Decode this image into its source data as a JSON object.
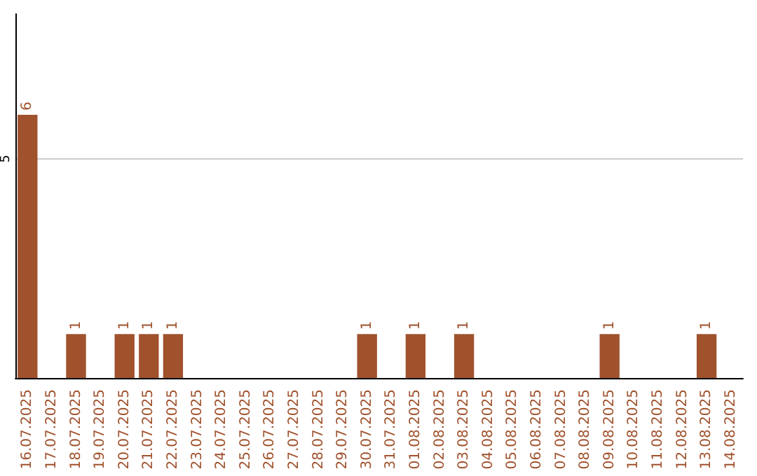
{
  "chart_data": {
    "type": "bar",
    "categories": [
      "16.07.2025",
      "17.07.2025",
      "18.07.2025",
      "19.07.2025",
      "20.07.2025",
      "21.07.2025",
      "22.07.2025",
      "23.07.2025",
      "24.07.2025",
      "25.07.2025",
      "26.07.2025",
      "27.07.2025",
      "28.07.2025",
      "29.07.2025",
      "30.07.2025",
      "31.07.2025",
      "01.08.2025",
      "02.08.2025",
      "03.08.2025",
      "04.08.2025",
      "05.08.2025",
      "06.08.2025",
      "07.08.2025",
      "08.08.2025",
      "09.08.2025",
      "10.08.2025",
      "11.08.2025",
      "12.08.2025",
      "13.08.2025",
      "14.08.2025"
    ],
    "values": [
      6,
      null,
      1,
      null,
      1,
      1,
      1,
      null,
      null,
      null,
      null,
      null,
      null,
      null,
      1,
      null,
      1,
      null,
      1,
      null,
      null,
      null,
      null,
      null,
      1,
      null,
      null,
      null,
      1,
      null
    ],
    "color": "#a0522d",
    "ylim": [
      0,
      8.3
    ],
    "yticks": [
      5
    ],
    "grid": "y",
    "data_labels": true
  }
}
